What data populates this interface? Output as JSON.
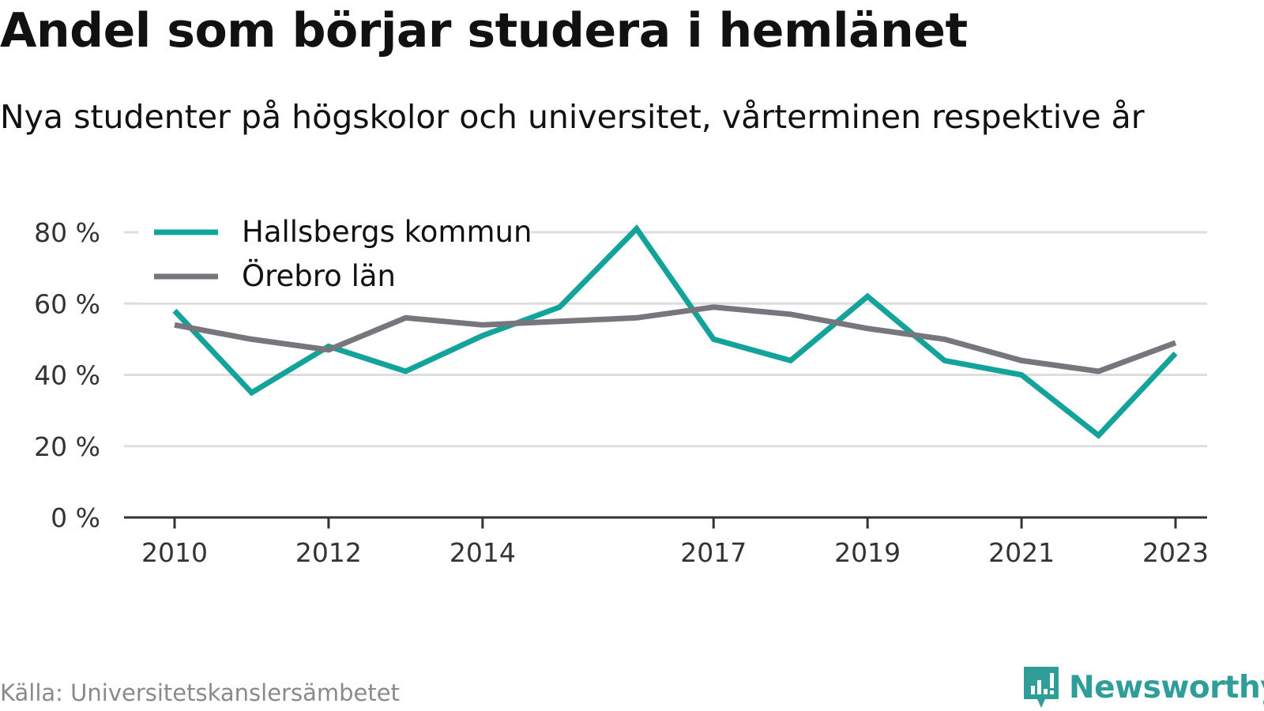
{
  "title": "Andel som börjar studera i hemlänet",
  "subtitle": "Nya studenter på högskolor och universitet, vårterminen respektive år",
  "source": "Källa: Universitetskanslersämbetet",
  "brand": "Newsworthy",
  "colors": {
    "hallsberg": "#13a39a",
    "orebro": "#77767c",
    "grid": "#dddddd",
    "axis": "#333333"
  },
  "chart_data": {
    "type": "line",
    "x": [
      2010,
      2011,
      2012,
      2013,
      2014,
      2015,
      2016,
      2017,
      2018,
      2019,
      2020,
      2021,
      2022,
      2023
    ],
    "x_tick_labels": [
      "2010",
      "2012",
      "2014",
      "2017",
      "2019",
      "2021",
      "2023"
    ],
    "y_tick_labels": [
      "0 %",
      "20 %",
      "40 %",
      "60 %",
      "80 %"
    ],
    "ylim": [
      0,
      80
    ],
    "grid": true,
    "legend_position": "top-left",
    "series": [
      {
        "name": "Hallsbergs kommun",
        "color": "#13a39a",
        "values": [
          58,
          35,
          48,
          41,
          51,
          59,
          81,
          50,
          44,
          62,
          44,
          40,
          23,
          46
        ]
      },
      {
        "name": "Örebro län",
        "color": "#77767c",
        "values": [
          54,
          50,
          47,
          56,
          54,
          55,
          56,
          59,
          57,
          53,
          50,
          44,
          41,
          49
        ]
      }
    ]
  }
}
